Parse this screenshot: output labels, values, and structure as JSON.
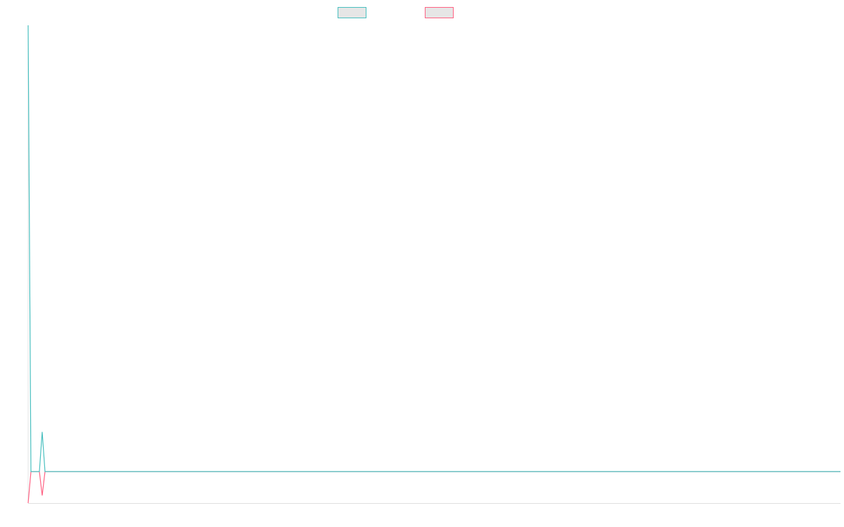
{
  "chart_data": {
    "type": "line",
    "x": [
      0,
      1,
      4,
      5,
      6,
      289
    ],
    "xlim": [
      0,
      289
    ],
    "ylim": [
      0,
      100
    ],
    "series": [
      {
        "color": "#4bc0c0",
        "values": [
          100,
          6.6,
          6.6,
          14.9,
          6.6,
          6.6
        ]
      },
      {
        "color": "#ff6384",
        "values": [
          0,
          6.6,
          6.6,
          1.6,
          6.6,
          6.6
        ]
      }
    ]
  }
}
